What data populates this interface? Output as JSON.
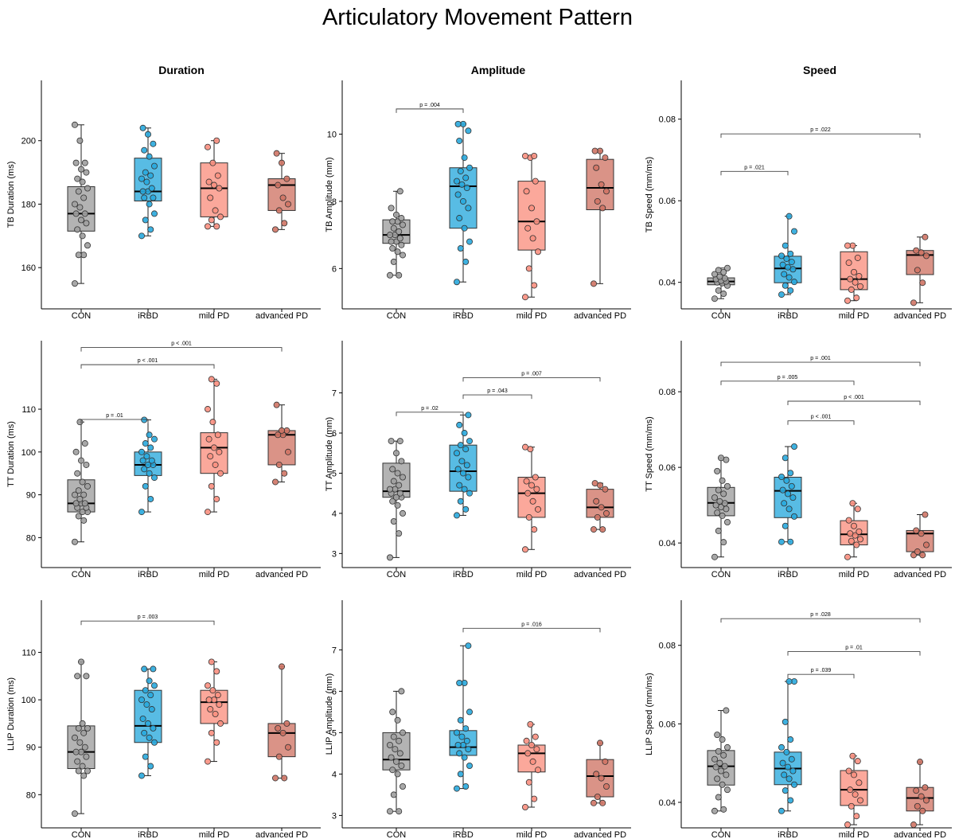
{
  "figure": {
    "title": "Articulatory Movement Pattern",
    "column_titles": [
      "Duration",
      "Amplitude",
      "Speed"
    ],
    "group_colors": [
      "#9e9e9e",
      "#29a9dd",
      "#fa8f7f",
      "#cf7465"
    ]
  },
  "chart_data": [
    {
      "type": "box",
      "ylabel": "TB Duration (ms)",
      "categories": [
        "CON",
        "iRBD",
        "mild PD",
        "advanced PD"
      ],
      "ylim": [
        147,
        219
      ],
      "yticks": [
        160,
        180,
        200
      ],
      "boxes": [
        {
          "min": 155,
          "q1": 171.5,
          "median": 177,
          "q3": 185.5,
          "max": 205
        },
        {
          "min": 170,
          "q1": 181,
          "median": 184,
          "q3": 194.5,
          "max": 204
        },
        {
          "min": 173,
          "q1": 176,
          "median": 185,
          "q3": 193,
          "max": 200
        },
        {
          "min": 172,
          "q1": 178,
          "median": 186,
          "q3": 188,
          "max": 196
        }
      ],
      "points": [
        [
          155,
          164,
          164,
          167,
          170,
          172,
          174,
          175,
          177,
          177,
          179,
          180,
          182,
          184,
          185,
          187,
          188,
          190,
          191,
          193,
          193,
          200,
          205
        ],
        [
          170,
          172,
          175,
          177,
          180,
          182,
          182,
          184,
          184,
          185,
          187,
          188,
          189,
          190,
          192,
          195,
          197,
          199,
          202,
          204
        ],
        [
          173,
          173,
          175,
          176,
          178,
          182,
          185,
          186,
          187,
          189,
          193,
          198,
          200
        ],
        [
          172,
          174,
          178,
          180,
          182,
          186,
          188,
          193,
          196
        ]
      ],
      "brackets": []
    },
    {
      "type": "box",
      "ylabel": "TB Amplitude (mm)",
      "categories": [
        "CON",
        "iRBD",
        "mild PD",
        "advanced PD"
      ],
      "ylim": [
        4.8,
        11.6
      ],
      "yticks": [
        6,
        8,
        10
      ],
      "boxes": [
        {
          "min": 5.8,
          "q1": 6.75,
          "median": 7.0,
          "q3": 7.45,
          "max": 8.3
        },
        {
          "min": 5.6,
          "q1": 7.2,
          "median": 8.45,
          "q3": 9.0,
          "max": 10.3
        },
        {
          "min": 5.15,
          "q1": 6.55,
          "median": 7.4,
          "q3": 8.6,
          "max": 9.35
        },
        {
          "min": 5.55,
          "q1": 7.75,
          "median": 8.4,
          "q3": 9.25,
          "max": 9.5
        }
      ],
      "points": [
        [
          5.8,
          5.8,
          6.2,
          6.4,
          6.5,
          6.6,
          6.7,
          6.8,
          6.8,
          6.9,
          7.0,
          7.0,
          7.1,
          7.2,
          7.3,
          7.4,
          7.4,
          7.5,
          7.6,
          7.8,
          8.3
        ],
        [
          5.6,
          6.2,
          6.6,
          6.8,
          7.2,
          7.5,
          7.8,
          8.0,
          8.2,
          8.4,
          8.5,
          8.6,
          8.7,
          8.9,
          9.0,
          9.3,
          9.8,
          10.1,
          10.3,
          10.3
        ],
        [
          5.15,
          5.5,
          6.0,
          6.5,
          6.9,
          7.2,
          7.4,
          7.8,
          8.3,
          8.6,
          9.3,
          9.35,
          9.35
        ],
        [
          5.55,
          7.8,
          8.0,
          8.3,
          8.5,
          9.0,
          9.3,
          9.5,
          9.5
        ]
      ],
      "brackets": [
        {
          "from": 0,
          "to": 1,
          "label": "p = .004",
          "y": 10.75
        }
      ]
    },
    {
      "type": "box",
      "ylabel": "TB Speed (mm/ms)",
      "categories": [
        "CON",
        "iRBD",
        "mild PD",
        "advanced PD"
      ],
      "ylim": [
        0.0335,
        0.0895
      ],
      "yticks": [
        0.04,
        0.06,
        0.08
      ],
      "boxes": [
        {
          "min": 0.036,
          "q1": 0.0394,
          "median": 0.0402,
          "q3": 0.0411,
          "max": 0.0435
        },
        {
          "min": 0.037,
          "q1": 0.0399,
          "median": 0.0434,
          "q3": 0.0464,
          "max": 0.0562
        },
        {
          "min": 0.0355,
          "q1": 0.0382,
          "median": 0.0408,
          "q3": 0.0475,
          "max": 0.049
        },
        {
          "min": 0.035,
          "q1": 0.0419,
          "median": 0.0467,
          "q3": 0.0478,
          "max": 0.0511
        }
      ],
      "points": [
        [
          0.036,
          0.0372,
          0.038,
          0.0392,
          0.0398,
          0.04,
          0.0402,
          0.0404,
          0.0408,
          0.041,
          0.0414,
          0.042,
          0.0425,
          0.043,
          0.0435
        ],
        [
          0.037,
          0.038,
          0.0392,
          0.0401,
          0.0412,
          0.042,
          0.0432,
          0.0437,
          0.0443,
          0.045,
          0.0458,
          0.0465,
          0.047,
          0.049,
          0.0525,
          0.0562
        ],
        [
          0.0355,
          0.0362,
          0.0382,
          0.039,
          0.04,
          0.0408,
          0.0415,
          0.0425,
          0.0448,
          0.046,
          0.049,
          0.049
        ],
        [
          0.035,
          0.0399,
          0.043,
          0.0465,
          0.0473,
          0.0478,
          0.0511
        ]
      ],
      "brackets": [
        {
          "from": 0,
          "to": 1,
          "label": "p = .021",
          "y": 0.0672
        },
        {
          "from": 0,
          "to": 3,
          "label": "p = .022",
          "y": 0.0764
        }
      ]
    },
    {
      "type": "box",
      "ylabel": "TT Duration (ms)",
      "categories": [
        "CON",
        "iRBD",
        "mild PD",
        "advanced PD"
      ],
      "ylim": [
        73,
        126
      ],
      "yticks": [
        80,
        90,
        100,
        110
      ],
      "boxes": [
        {
          "min": 79,
          "q1": 86,
          "median": 88,
          "q3": 93.5,
          "max": 107
        },
        {
          "min": 86,
          "q1": 94.5,
          "median": 97,
          "q3": 100,
          "max": 107.5
        },
        {
          "min": 86,
          "q1": 95,
          "median": 101,
          "q3": 104.5,
          "max": 117
        },
        {
          "min": 93,
          "q1": 97,
          "median": 104,
          "q3": 105,
          "max": 111
        }
      ],
      "points": [
        [
          79,
          84,
          85,
          86,
          86,
          87,
          87,
          88,
          88,
          88,
          89,
          90,
          90,
          91,
          92,
          93,
          95,
          97,
          98,
          100,
          102,
          107
        ],
        [
          86,
          89,
          92,
          94,
          95,
          96,
          97,
          97,
          98,
          98,
          99,
          100,
          101,
          102,
          103,
          104,
          107.5
        ],
        [
          86,
          89,
          92,
          95,
          97,
          99,
          100,
          101,
          103,
          104,
          107,
          110,
          116,
          117
        ],
        [
          93,
          95,
          97,
          100,
          104,
          104,
          105,
          105,
          111
        ]
      ],
      "brackets": [
        {
          "from": 0,
          "to": 1,
          "label": "p = .01",
          "y": 107.6
        },
        {
          "from": 0,
          "to": 2,
          "label": "p < .001",
          "y": 120.4
        },
        {
          "from": 0,
          "to": 3,
          "label": "p < .001",
          "y": 124.4
        }
      ]
    },
    {
      "type": "box",
      "ylabel": "TT Amplitude (mm)",
      "categories": [
        "CON",
        "iRBD",
        "mild PD",
        "advanced PD"
      ],
      "ylim": [
        2.65,
        8.3
      ],
      "yticks": [
        3,
        4,
        5,
        6,
        7
      ],
      "boxes": [
        {
          "min": 2.9,
          "q1": 4.4,
          "median": 4.55,
          "q3": 5.25,
          "max": 5.8
        },
        {
          "min": 3.95,
          "q1": 4.55,
          "median": 5.05,
          "q3": 5.7,
          "max": 6.45
        },
        {
          "min": 3.1,
          "q1": 3.9,
          "median": 4.5,
          "q3": 4.9,
          "max": 5.65
        },
        {
          "min": 3.6,
          "q1": 3.9,
          "median": 4.15,
          "q3": 4.6,
          "max": 4.75
        }
      ],
      "points": [
        [
          2.9,
          3.5,
          3.8,
          4.0,
          4.2,
          4.3,
          4.4,
          4.4,
          4.5,
          4.5,
          4.6,
          4.6,
          4.7,
          4.8,
          4.9,
          5.0,
          5.1,
          5.3,
          5.5,
          5.8,
          5.8
        ],
        [
          3.95,
          4.1,
          4.3,
          4.5,
          4.6,
          4.7,
          4.9,
          5.0,
          5.1,
          5.2,
          5.3,
          5.5,
          5.6,
          5.7,
          5.8,
          6.0,
          6.2,
          6.45
        ],
        [
          3.1,
          3.6,
          3.9,
          4.1,
          4.3,
          4.5,
          4.6,
          4.7,
          4.8,
          4.9,
          5.6,
          5.65
        ],
        [
          3.6,
          3.6,
          3.9,
          4.0,
          4.15,
          4.3,
          4.6,
          4.7,
          4.75
        ]
      ],
      "brackets": [
        {
          "from": 0,
          "to": 1,
          "label": "p = .02",
          "y": 6.52
        },
        {
          "from": 1,
          "to": 2,
          "label": "p = .043",
          "y": 6.95
        },
        {
          "from": 1,
          "to": 3,
          "label": "p = .007",
          "y": 7.38
        }
      ]
    },
    {
      "type": "box",
      "ylabel": "TT Speed (mm/ms)",
      "categories": [
        "CON",
        "iRBD",
        "mild PD",
        "advanced PD"
      ],
      "ylim": [
        0.0335,
        0.0935
      ],
      "yticks": [
        0.04,
        0.06,
        0.08
      ],
      "boxes": [
        {
          "min": 0.0363,
          "q1": 0.0472,
          "median": 0.0506,
          "q3": 0.0547,
          "max": 0.0625
        },
        {
          "min": 0.0403,
          "q1": 0.0467,
          "median": 0.0538,
          "q3": 0.0574,
          "max": 0.0655
        },
        {
          "min": 0.0363,
          "q1": 0.0395,
          "median": 0.0423,
          "q3": 0.0459,
          "max": 0.0505
        },
        {
          "min": 0.0368,
          "q1": 0.0377,
          "median": 0.0425,
          "q3": 0.0433,
          "max": 0.0475
        }
      ],
      "points": [
        [
          0.0363,
          0.0402,
          0.0432,
          0.0455,
          0.0472,
          0.048,
          0.049,
          0.0495,
          0.05,
          0.0505,
          0.051,
          0.052,
          0.053,
          0.054,
          0.055,
          0.0565,
          0.059,
          0.062,
          0.0625
        ],
        [
          0.0403,
          0.0403,
          0.0445,
          0.047,
          0.049,
          0.0505,
          0.052,
          0.053,
          0.054,
          0.055,
          0.0565,
          0.0575,
          0.0585,
          0.0625,
          0.0655
        ],
        [
          0.0363,
          0.0395,
          0.0405,
          0.041,
          0.042,
          0.0425,
          0.043,
          0.0445,
          0.046,
          0.049,
          0.0505
        ],
        [
          0.0368,
          0.0368,
          0.0377,
          0.0395,
          0.0425,
          0.0433,
          0.0475
        ]
      ],
      "brackets": [
        {
          "from": 1,
          "to": 2,
          "label": "p < .001",
          "y": 0.0723
        },
        {
          "from": 1,
          "to": 3,
          "label": "p < .001",
          "y": 0.0775
        },
        {
          "from": 0,
          "to": 2,
          "label": "p = .005",
          "y": 0.0828
        },
        {
          "from": 0,
          "to": 3,
          "label": "p = .001",
          "y": 0.0878
        }
      ]
    },
    {
      "type": "box",
      "ylabel": "LLIP Duration (ms)",
      "categories": [
        "CON",
        "iRBD",
        "mild PD",
        "advanced PD"
      ],
      "ylim": [
        73,
        121
      ],
      "yticks": [
        80,
        90,
        100,
        110
      ],
      "boxes": [
        {
          "min": 76,
          "q1": 85.5,
          "median": 89,
          "q3": 94.5,
          "max": 108
        },
        {
          "min": 84,
          "q1": 91,
          "median": 94.5,
          "q3": 102,
          "max": 106.5
        },
        {
          "min": 87,
          "q1": 95,
          "median": 99.5,
          "q3": 102,
          "max": 108
        },
        {
          "min": 83.5,
          "q1": 88,
          "median": 93,
          "q3": 95,
          "max": 107
        }
      ],
      "points": [
        [
          76,
          84,
          85,
          85,
          86,
          87,
          88,
          89,
          89,
          90,
          91,
          92,
          93,
          94,
          94,
          95,
          105,
          105,
          108
        ],
        [
          84,
          86,
          88,
          91,
          92,
          93,
          94,
          95,
          96,
          98,
          99,
          100,
          101,
          102,
          103,
          104,
          106.5,
          106.5
        ],
        [
          87,
          91,
          93,
          95,
          97,
          98,
          99,
          100,
          100,
          101,
          102,
          103,
          106,
          108
        ],
        [
          83.5,
          83.5,
          88,
          90,
          93,
          94,
          95,
          107
        ]
      ],
      "brackets": [
        {
          "from": 0,
          "to": 2,
          "label": "p = .003",
          "y": 116.6
        }
      ]
    },
    {
      "type": "box",
      "ylabel": "LLIP Amplitude (mm)",
      "categories": [
        "CON",
        "iRBD",
        "mild PD",
        "advanced PD"
      ],
      "ylim": [
        2.7,
        8.2
      ],
      "yticks": [
        3,
        4,
        5,
        6,
        7
      ],
      "boxes": [
        {
          "min": 3.1,
          "q1": 4.1,
          "median": 4.35,
          "q3": 5.0,
          "max": 6.0
        },
        {
          "min": 3.65,
          "q1": 4.45,
          "median": 4.65,
          "q3": 5.05,
          "max": 7.1
        },
        {
          "min": 3.2,
          "q1": 4.05,
          "median": 4.5,
          "q3": 4.7,
          "max": 5.2
        },
        {
          "min": 3.3,
          "q1": 3.45,
          "median": 3.95,
          "q3": 4.35,
          "max": 4.75
        }
      ],
      "points": [
        [
          3.1,
          3.1,
          3.5,
          3.7,
          4.0,
          4.1,
          4.2,
          4.3,
          4.4,
          4.5,
          4.6,
          4.7,
          4.8,
          4.9,
          5.0,
          5.3,
          5.5,
          6.0
        ],
        [
          3.65,
          3.7,
          4.0,
          4.2,
          4.4,
          4.5,
          4.6,
          4.7,
          4.7,
          4.8,
          4.9,
          5.0,
          5.1,
          5.3,
          5.5,
          6.2,
          6.2,
          7.1
        ],
        [
          3.2,
          3.4,
          3.8,
          4.1,
          4.3,
          4.5,
          4.6,
          4.7,
          4.8,
          4.9,
          5.2
        ],
        [
          3.3,
          3.3,
          3.45,
          3.7,
          3.9,
          4.0,
          4.3,
          4.75
        ]
      ],
      "brackets": [
        {
          "from": 1,
          "to": 3,
          "label": "p = .016",
          "y": 7.52
        }
      ]
    },
    {
      "type": "box",
      "ylabel": "LLIP Speed (mm/ms)",
      "categories": [
        "CON",
        "iRBD",
        "mild PD",
        "advanced PD"
      ],
      "ylim": [
        0.0335,
        0.0915
      ],
      "yticks": [
        0.04,
        0.06,
        0.08
      ],
      "boxes": [
        {
          "min": 0.0378,
          "q1": 0.0444,
          "median": 0.0492,
          "q3": 0.0532,
          "max": 0.0634
        },
        {
          "min": 0.0378,
          "q1": 0.0445,
          "median": 0.0486,
          "q3": 0.0528,
          "max": 0.0708
        },
        {
          "min": 0.0343,
          "q1": 0.0392,
          "median": 0.0432,
          "q3": 0.0481,
          "max": 0.0518
        },
        {
          "min": 0.0343,
          "q1": 0.0378,
          "median": 0.0411,
          "q3": 0.0438,
          "max": 0.0503
        }
      ],
      "points": [
        [
          0.0378,
          0.0382,
          0.0413,
          0.0432,
          0.0445,
          0.046,
          0.047,
          0.048,
          0.049,
          0.0492,
          0.05,
          0.051,
          0.052,
          0.053,
          0.054,
          0.056,
          0.0572,
          0.0634
        ],
        [
          0.0378,
          0.0405,
          0.043,
          0.0445,
          0.046,
          0.047,
          0.048,
          0.049,
          0.05,
          0.051,
          0.0528,
          0.054,
          0.056,
          0.0605,
          0.0708,
          0.0708
        ],
        [
          0.0343,
          0.0365,
          0.039,
          0.0405,
          0.042,
          0.0432,
          0.045,
          0.047,
          0.048,
          0.0505,
          0.0518
        ],
        [
          0.0343,
          0.0378,
          0.039,
          0.0405,
          0.0415,
          0.043,
          0.0438,
          0.0503
        ]
      ],
      "brackets": [
        {
          "from": 1,
          "to": 2,
          "label": "p = .039",
          "y": 0.0726
        },
        {
          "from": 1,
          "to": 3,
          "label": "p = .01",
          "y": 0.0784
        },
        {
          "from": 0,
          "to": 3,
          "label": "p = .028",
          "y": 0.0868
        }
      ]
    }
  ]
}
